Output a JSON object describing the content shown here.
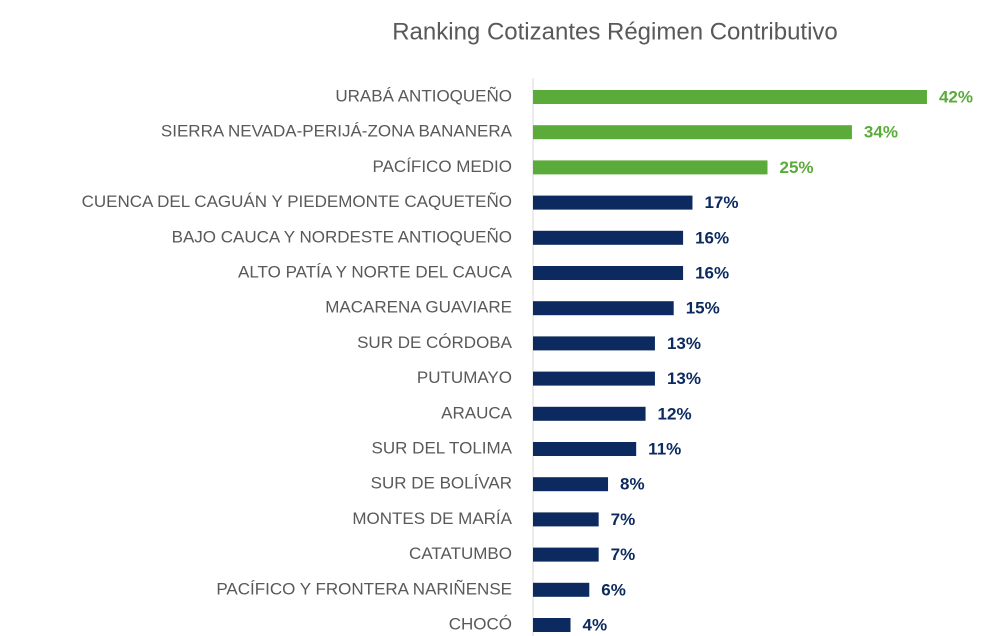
{
  "chart_data": {
    "type": "barh",
    "title": "Ranking Cotizantes Régimen Contributivo",
    "categories": [
      "URABÁ ANTIOQUEÑO",
      "SIERRA NEVADA-PERIJÁ-ZONA BANANERA",
      "PACÍFICO MEDIO",
      "CUENCA DEL CAGUÁN Y PIEDEMONTE CAQUETEÑO",
      "BAJO CAUCA Y NORDESTE ANTIOQUEÑO",
      "ALTO PATÍA Y NORTE DEL CAUCA",
      "MACARENA GUAVIARE",
      "SUR DE CÓRDOBA",
      "PUTUMAYO",
      "ARAUCA",
      "SUR DEL TOLIMA",
      "SUR DE BOLÍVAR",
      "MONTES DE MARÍA",
      "CATATUMBO",
      "PACÍFICO Y FRONTERA NARIÑENSE",
      "CHOCÓ"
    ],
    "values": [
      42,
      34,
      25,
      17,
      16,
      16,
      15,
      13,
      13,
      12,
      11,
      8,
      7,
      7,
      6,
      4
    ],
    "value_labels": [
      "42%",
      "34%",
      "25%",
      "17%",
      "16%",
      "16%",
      "15%",
      "13%",
      "13%",
      "12%",
      "11%",
      "8%",
      "7%",
      "7%",
      "6%",
      "4%"
    ],
    "colors": [
      "#5aab3a",
      "#5aab3a",
      "#5aab3a",
      "#0c2a5f",
      "#0c2a5f",
      "#0c2a5f",
      "#0c2a5f",
      "#0c2a5f",
      "#0c2a5f",
      "#0c2a5f",
      "#0c2a5f",
      "#0c2a5f",
      "#0c2a5f",
      "#0c2a5f",
      "#0c2a5f",
      "#0c2a5f"
    ]
  }
}
